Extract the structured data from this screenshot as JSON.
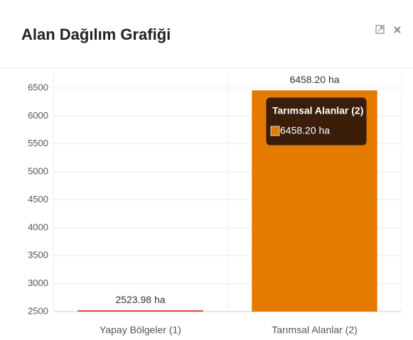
{
  "chart_data": {
    "type": "bar",
    "title": "Alan Dağılım Grafiği",
    "categories": [
      "Yapay Bölgeler (1)",
      "Tarımsal Alanlar (2)"
    ],
    "values": [
      2523.98,
      6458.2
    ],
    "value_labels": [
      "2523.98 ha",
      "6458.20 ha"
    ],
    "colors": [
      "#d9423a",
      "#e57a00"
    ],
    "ylim": [
      2500,
      6500
    ],
    "yticks": [
      2500,
      3000,
      3500,
      4000,
      4500,
      5000,
      5500,
      6000,
      6500
    ],
    "grid": true
  }
}
